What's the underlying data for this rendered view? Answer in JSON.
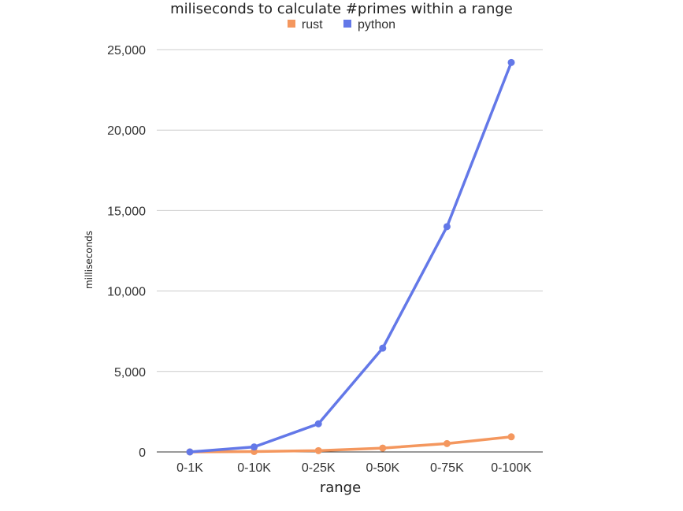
{
  "chart_data": {
    "type": "line",
    "title": "miliseconds to calculate #primes within a range",
    "xlabel": "range",
    "ylabel": "milliseconds",
    "categories": [
      "0-1K",
      "0-10K",
      "0-25K",
      "0-50K",
      "0-75K",
      "0-100K"
    ],
    "ylim": [
      0,
      25000
    ],
    "yticks": [
      0,
      5000,
      10000,
      15000,
      20000,
      25000
    ],
    "ytick_labels": [
      "0",
      "5,000",
      "10,000",
      "15,000",
      "20,000",
      "25,000"
    ],
    "grid": true,
    "legend": "top-center",
    "series": [
      {
        "name": "rust",
        "color": "#f4975e",
        "values": [
          0,
          25,
          80,
          240,
          520,
          940
        ]
      },
      {
        "name": "python",
        "color": "#6378e8",
        "values": [
          0,
          310,
          1750,
          6450,
          14000,
          24200
        ]
      }
    ]
  }
}
